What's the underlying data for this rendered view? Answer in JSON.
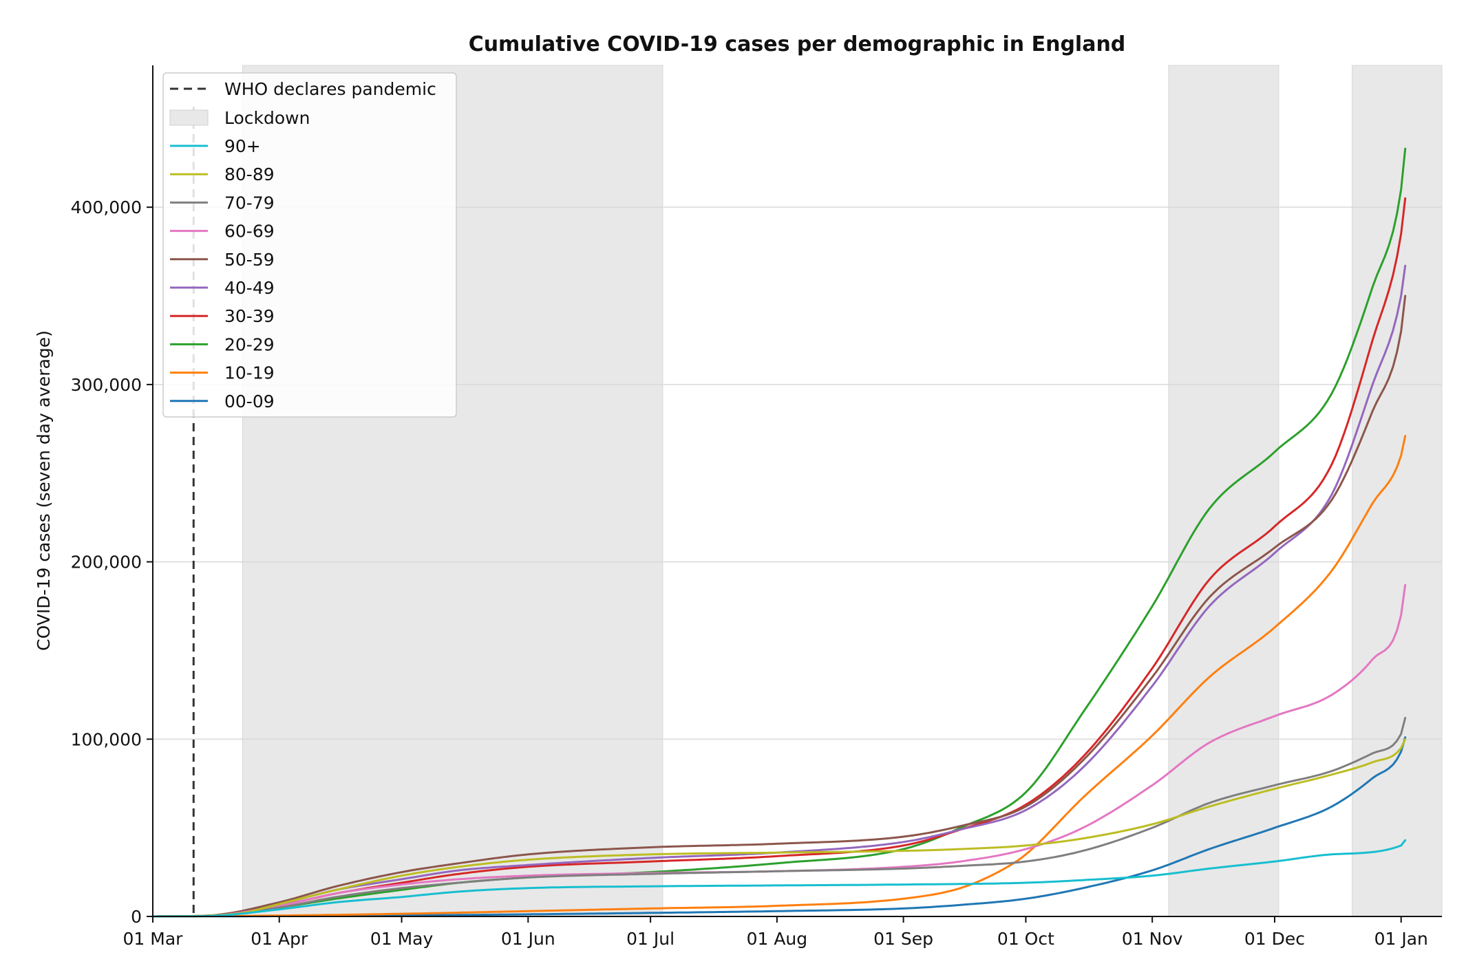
{
  "chart_data": {
    "type": "line",
    "title": "Cumulative COVID-19 cases per demographic in England",
    "xlabel": "",
    "ylabel": "COVID-19 cases (seven day average)",
    "x_range": [
      "2020-03-01",
      "2021-01-11"
    ],
    "ylim": [
      0,
      480000
    ],
    "x_ticks": [
      {
        "date": "2020-03-01",
        "label": "01 Mar"
      },
      {
        "date": "2020-04-01",
        "label": "01 Apr"
      },
      {
        "date": "2020-05-01",
        "label": "01 May"
      },
      {
        "date": "2020-06-01",
        "label": "01 Jun"
      },
      {
        "date": "2020-07-01",
        "label": "01 Jul"
      },
      {
        "date": "2020-08-01",
        "label": "01 Aug"
      },
      {
        "date": "2020-09-01",
        "label": "01 Sep"
      },
      {
        "date": "2020-10-01",
        "label": "01 Oct"
      },
      {
        "date": "2020-11-01",
        "label": "01 Nov"
      },
      {
        "date": "2020-12-01",
        "label": "01 Dec"
      },
      {
        "date": "2021-01-01",
        "label": "01 Jan"
      }
    ],
    "y_ticks": [
      {
        "value": 0,
        "label": "0"
      },
      {
        "value": 100000,
        "label": "100,000"
      },
      {
        "value": 200000,
        "label": "200,000"
      },
      {
        "value": 300000,
        "label": "300,000"
      },
      {
        "value": 400000,
        "label": "400,000"
      }
    ],
    "grid": "horizontal",
    "legend_position": "top-left",
    "pandemic_marker": {
      "date": "2020-03-11",
      "label": "WHO declares pandemic",
      "color": "#333333"
    },
    "lockdowns": [
      {
        "start": "2020-03-23",
        "end": "2020-07-04"
      },
      {
        "start": "2020-11-05",
        "end": "2020-12-02"
      },
      {
        "start": "2020-12-20",
        "end": "2021-01-11"
      }
    ],
    "lockdown_legend": {
      "label": "Lockdown",
      "color": "#e8e8e8"
    },
    "series": [
      {
        "name": "90+",
        "color": "#17becf",
        "points": [
          [
            "2020-03-01",
            0
          ],
          [
            "2020-03-15",
            300
          ],
          [
            "2020-04-01",
            4000
          ],
          [
            "2020-04-15",
            8000
          ],
          [
            "2020-05-01",
            11000
          ],
          [
            "2020-05-15",
            14000
          ],
          [
            "2020-06-01",
            16000
          ],
          [
            "2020-07-01",
            17000
          ],
          [
            "2020-08-01",
            17500
          ],
          [
            "2020-09-01",
            18000
          ],
          [
            "2020-10-01",
            19000
          ],
          [
            "2020-10-15",
            20500
          ],
          [
            "2020-11-01",
            23000
          ],
          [
            "2020-11-15",
            27000
          ],
          [
            "2020-12-01",
            31000
          ],
          [
            "2020-12-15",
            35000
          ],
          [
            "2021-01-01",
            40000
          ],
          [
            "2021-01-02",
            43000
          ]
        ]
      },
      {
        "name": "80-89",
        "color": "#bcbd22",
        "points": [
          [
            "2020-03-01",
            0
          ],
          [
            "2020-03-15",
            500
          ],
          [
            "2020-03-23",
            2000
          ],
          [
            "2020-04-01",
            7000
          ],
          [
            "2020-04-15",
            15000
          ],
          [
            "2020-05-01",
            23000
          ],
          [
            "2020-05-15",
            28000
          ],
          [
            "2020-06-01",
            32000
          ],
          [
            "2020-07-01",
            35000
          ],
          [
            "2020-08-01",
            36000
          ],
          [
            "2020-09-01",
            37000
          ],
          [
            "2020-09-15",
            38000
          ],
          [
            "2020-10-01",
            40000
          ],
          [
            "2020-10-15",
            44000
          ],
          [
            "2020-11-01",
            52000
          ],
          [
            "2020-11-15",
            62000
          ],
          [
            "2020-12-01",
            72000
          ],
          [
            "2020-12-15",
            80000
          ],
          [
            "2020-12-25",
            87000
          ],
          [
            "2021-01-01",
            95000
          ],
          [
            "2021-01-02",
            100000
          ]
        ]
      },
      {
        "name": "70-79",
        "color": "#7f7f7f",
        "points": [
          [
            "2020-03-01",
            0
          ],
          [
            "2020-03-15",
            300
          ],
          [
            "2020-04-01",
            5000
          ],
          [
            "2020-04-15",
            11000
          ],
          [
            "2020-05-01",
            16000
          ],
          [
            "2020-05-15",
            19000
          ],
          [
            "2020-06-01",
            22000
          ],
          [
            "2020-07-01",
            24000
          ],
          [
            "2020-08-01",
            25500
          ],
          [
            "2020-09-01",
            27000
          ],
          [
            "2020-09-15",
            28500
          ],
          [
            "2020-10-01",
            31000
          ],
          [
            "2020-10-15",
            37000
          ],
          [
            "2020-11-01",
            50000
          ],
          [
            "2020-11-15",
            64000
          ],
          [
            "2020-12-01",
            74000
          ],
          [
            "2020-12-15",
            82000
          ],
          [
            "2020-12-25",
            92000
          ],
          [
            "2021-01-01",
            103000
          ],
          [
            "2021-01-02",
            112000
          ]
        ]
      },
      {
        "name": "60-69",
        "color": "#e377c2",
        "points": [
          [
            "2020-03-01",
            0
          ],
          [
            "2020-03-15",
            400
          ],
          [
            "2020-04-01",
            6000
          ],
          [
            "2020-04-15",
            13000
          ],
          [
            "2020-05-01",
            18000
          ],
          [
            "2020-05-15",
            21000
          ],
          [
            "2020-06-01",
            23000
          ],
          [
            "2020-07-01",
            24500
          ],
          [
            "2020-08-01",
            25500
          ],
          [
            "2020-09-01",
            28000
          ],
          [
            "2020-09-15",
            31000
          ],
          [
            "2020-10-01",
            38000
          ],
          [
            "2020-10-15",
            50000
          ],
          [
            "2020-11-01",
            74000
          ],
          [
            "2020-11-15",
            98000
          ],
          [
            "2020-12-01",
            113000
          ],
          [
            "2020-12-15",
            125000
          ],
          [
            "2020-12-25",
            145000
          ],
          [
            "2021-01-01",
            170000
          ],
          [
            "2021-01-02",
            187000
          ]
        ]
      },
      {
        "name": "50-59",
        "color": "#8c564b",
        "points": [
          [
            "2020-03-01",
            0
          ],
          [
            "2020-03-15",
            600
          ],
          [
            "2020-04-01",
            8000
          ],
          [
            "2020-04-15",
            17000
          ],
          [
            "2020-05-01",
            25000
          ],
          [
            "2020-05-15",
            30000
          ],
          [
            "2020-06-01",
            35000
          ],
          [
            "2020-07-01",
            39000
          ],
          [
            "2020-08-01",
            41000
          ],
          [
            "2020-09-01",
            45000
          ],
          [
            "2020-09-15",
            51000
          ],
          [
            "2020-10-01",
            62000
          ],
          [
            "2020-10-15",
            88000
          ],
          [
            "2020-11-01",
            135000
          ],
          [
            "2020-11-15",
            180000
          ],
          [
            "2020-12-01",
            208000
          ],
          [
            "2020-12-15",
            235000
          ],
          [
            "2020-12-25",
            285000
          ],
          [
            "2021-01-01",
            330000
          ],
          [
            "2021-01-02",
            350000
          ]
        ]
      },
      {
        "name": "40-49",
        "color": "#9467bd",
        "points": [
          [
            "2020-03-01",
            0
          ],
          [
            "2020-03-15",
            500
          ],
          [
            "2020-04-01",
            7000
          ],
          [
            "2020-04-15",
            15000
          ],
          [
            "2020-05-01",
            21000
          ],
          [
            "2020-05-15",
            26000
          ],
          [
            "2020-06-01",
            29000
          ],
          [
            "2020-07-01",
            33000
          ],
          [
            "2020-08-01",
            36000
          ],
          [
            "2020-09-01",
            42000
          ],
          [
            "2020-09-15",
            49000
          ],
          [
            "2020-10-01",
            60000
          ],
          [
            "2020-10-15",
            84000
          ],
          [
            "2020-11-01",
            130000
          ],
          [
            "2020-11-15",
            175000
          ],
          [
            "2020-12-01",
            205000
          ],
          [
            "2020-12-15",
            238000
          ],
          [
            "2020-12-25",
            300000
          ],
          [
            "2021-01-01",
            350000
          ],
          [
            "2021-01-02",
            367000
          ]
        ]
      },
      {
        "name": "30-39",
        "color": "#d62728",
        "points": [
          [
            "2020-03-01",
            0
          ],
          [
            "2020-03-15",
            400
          ],
          [
            "2020-04-01",
            6000
          ],
          [
            "2020-04-15",
            13000
          ],
          [
            "2020-05-01",
            19000
          ],
          [
            "2020-05-15",
            24000
          ],
          [
            "2020-06-01",
            28000
          ],
          [
            "2020-07-01",
            31000
          ],
          [
            "2020-08-01",
            34000
          ],
          [
            "2020-09-01",
            40000
          ],
          [
            "2020-09-15",
            49000
          ],
          [
            "2020-10-01",
            63000
          ],
          [
            "2020-10-15",
            90000
          ],
          [
            "2020-11-01",
            140000
          ],
          [
            "2020-11-15",
            190000
          ],
          [
            "2020-12-01",
            220000
          ],
          [
            "2020-12-15",
            255000
          ],
          [
            "2020-12-25",
            325000
          ],
          [
            "2021-01-01",
            385000
          ],
          [
            "2021-01-02",
            405000
          ]
        ]
      },
      {
        "name": "20-29",
        "color": "#2ca02c",
        "points": [
          [
            "2020-03-01",
            0
          ],
          [
            "2020-03-15",
            300
          ],
          [
            "2020-04-01",
            5000
          ],
          [
            "2020-04-15",
            10000
          ],
          [
            "2020-05-01",
            15000
          ],
          [
            "2020-05-15",
            19000
          ],
          [
            "2020-06-01",
            22000
          ],
          [
            "2020-07-01",
            25000
          ],
          [
            "2020-08-01",
            30000
          ],
          [
            "2020-09-01",
            38000
          ],
          [
            "2020-09-15",
            50000
          ],
          [
            "2020-10-01",
            70000
          ],
          [
            "2020-10-15",
            115000
          ],
          [
            "2020-11-01",
            175000
          ],
          [
            "2020-11-15",
            230000
          ],
          [
            "2020-12-01",
            262000
          ],
          [
            "2020-12-15",
            295000
          ],
          [
            "2020-12-25",
            355000
          ],
          [
            "2021-01-01",
            410000
          ],
          [
            "2021-01-02",
            433000
          ]
        ]
      },
      {
        "name": "10-19",
        "color": "#ff7f0e",
        "points": [
          [
            "2020-03-01",
            0
          ],
          [
            "2020-04-01",
            500
          ],
          [
            "2020-05-01",
            1500
          ],
          [
            "2020-06-01",
            3000
          ],
          [
            "2020-07-01",
            4500
          ],
          [
            "2020-08-01",
            6000
          ],
          [
            "2020-09-01",
            10000
          ],
          [
            "2020-09-15",
            16000
          ],
          [
            "2020-09-25",
            26000
          ],
          [
            "2020-10-01",
            35000
          ],
          [
            "2020-10-15",
            67000
          ],
          [
            "2020-11-01",
            102000
          ],
          [
            "2020-11-15",
            135000
          ],
          [
            "2020-12-01",
            163000
          ],
          [
            "2020-12-15",
            195000
          ],
          [
            "2020-12-25",
            233000
          ],
          [
            "2021-01-01",
            260000
          ],
          [
            "2021-01-02",
            271000
          ]
        ]
      },
      {
        "name": "00-09",
        "color": "#1f77b4",
        "points": [
          [
            "2020-03-01",
            0
          ],
          [
            "2020-04-01",
            200
          ],
          [
            "2020-05-01",
            600
          ],
          [
            "2020-06-01",
            1200
          ],
          [
            "2020-07-01",
            2000
          ],
          [
            "2020-08-01",
            3000
          ],
          [
            "2020-09-01",
            4500
          ],
          [
            "2020-09-15",
            6500
          ],
          [
            "2020-10-01",
            10000
          ],
          [
            "2020-10-15",
            16000
          ],
          [
            "2020-11-01",
            26000
          ],
          [
            "2020-11-15",
            38000
          ],
          [
            "2020-12-01",
            50000
          ],
          [
            "2020-12-15",
            62000
          ],
          [
            "2020-12-25",
            78000
          ],
          [
            "2021-01-01",
            93000
          ],
          [
            "2021-01-02",
            101000
          ]
        ]
      }
    ]
  }
}
